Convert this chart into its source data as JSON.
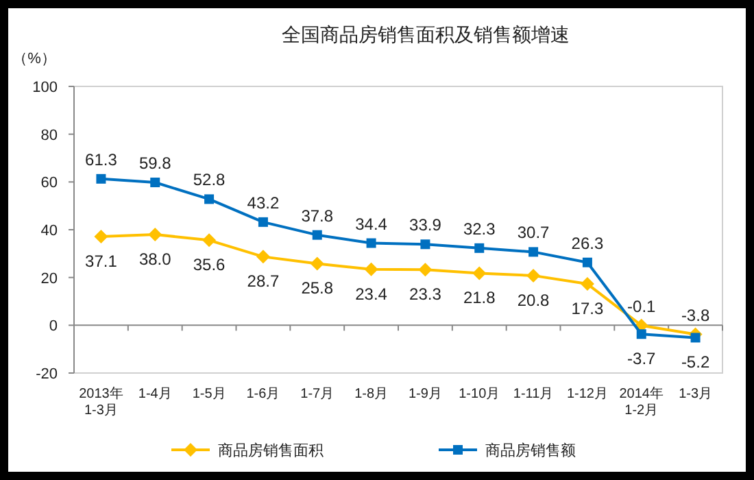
{
  "chart_data": {
    "type": "line",
    "title": "全国商品房销售面积及销售额增速",
    "ylabel": "（%）",
    "categories": [
      "2013年\n1-3月",
      "1-4月",
      "1-5月",
      "1-6月",
      "1-7月",
      "1-8月",
      "1-9月",
      "1-10月",
      "1-11月",
      "1-12月",
      "2014年\n1-2月",
      "1-3月"
    ],
    "series": [
      {
        "name": "商品房销售面积",
        "color": "#ffc000",
        "marker": "diamond",
        "values": [
          37.1,
          38.0,
          35.6,
          28.7,
          25.8,
          23.4,
          23.3,
          21.8,
          20.8,
          17.3,
          -0.1,
          -3.8
        ],
        "value_labels": [
          "37.1",
          "38.0",
          "35.6",
          "28.7",
          "25.8",
          "23.4",
          "23.3",
          "21.8",
          "20.8",
          "17.3",
          "-0.1",
          "-3.8"
        ]
      },
      {
        "name": "商品房销售额",
        "color": "#0070c0",
        "marker": "square",
        "values": [
          61.3,
          59.8,
          52.8,
          43.2,
          37.8,
          34.4,
          33.9,
          32.3,
          30.7,
          26.3,
          -3.7,
          -5.2
        ],
        "value_labels": [
          "61.3",
          "59.8",
          "52.8",
          "43.2",
          "37.8",
          "34.4",
          "33.9",
          "32.3",
          "30.7",
          "26.3",
          "-3.7",
          "-5.2"
        ]
      }
    ],
    "ylim": [
      -20,
      100
    ],
    "yticks": [
      -20,
      0,
      20,
      40,
      60,
      80,
      100
    ],
    "legend": "bottom"
  }
}
